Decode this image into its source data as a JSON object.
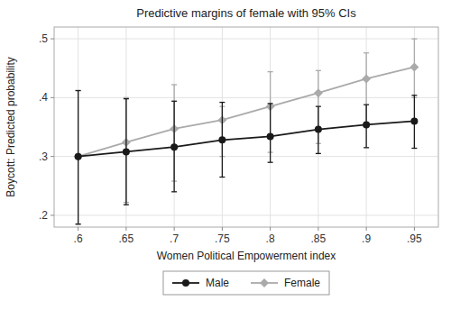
{
  "chart_data": {
    "type": "line",
    "title": "Predictive margins of female with 95% CIs",
    "xlabel": "Women Political Empowerment index",
    "ylabel": "Boycott: Predicted probability",
    "x": [
      0.6,
      0.65,
      0.7,
      0.75,
      0.8,
      0.85,
      0.9,
      0.95
    ],
    "xlim": [
      0.575,
      0.975
    ],
    "xticks": [
      {
        "value": 0.6,
        "label": ".6"
      },
      {
        "value": 0.65,
        "label": ".65"
      },
      {
        "value": 0.7,
        "label": ".7"
      },
      {
        "value": 0.75,
        "label": ".75"
      },
      {
        "value": 0.8,
        "label": ".8"
      },
      {
        "value": 0.85,
        "label": ".85"
      },
      {
        "value": 0.9,
        "label": ".9"
      },
      {
        "value": 0.95,
        "label": ".95"
      }
    ],
    "ylim": [
      0.18,
      0.52
    ],
    "yticks": [
      {
        "value": 0.2,
        "label": ".2"
      },
      {
        "value": 0.3,
        "label": ".3"
      },
      {
        "value": 0.4,
        "label": ".4"
      },
      {
        "value": 0.5,
        "label": ".5"
      }
    ],
    "grid": true,
    "legend": "bottom",
    "series": [
      {
        "name": "Male",
        "color": "#1a1a1a",
        "marker": "circle",
        "values": [
          0.3,
          0.308,
          0.316,
          0.328,
          0.334,
          0.346,
          0.354,
          0.36
        ],
        "ci_low": [
          0.185,
          0.218,
          0.24,
          0.265,
          0.29,
          0.305,
          0.315,
          0.314
        ],
        "ci_high": [
          0.412,
          0.398,
          0.394,
          0.392,
          0.39,
          0.385,
          0.388,
          0.404
        ]
      },
      {
        "name": "Female",
        "color": "#aaaaaa",
        "marker": "diamond",
        "values": [
          0.3,
          0.324,
          0.347,
          0.362,
          0.385,
          0.408,
          0.432,
          0.452
        ],
        "ci_low": [
          0.185,
          0.222,
          0.258,
          0.3,
          0.307,
          0.322,
          0.352,
          0.4
        ],
        "ci_high": [
          0.412,
          0.4,
          0.422,
          0.385,
          0.444,
          0.446,
          0.476,
          0.5
        ]
      }
    ]
  }
}
